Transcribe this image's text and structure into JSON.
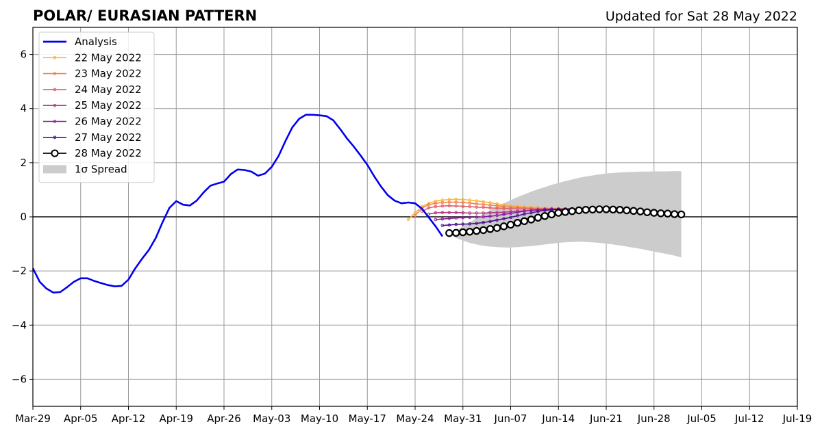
{
  "header": {
    "title": "POLAR/ EURASIAN  PATTERN",
    "updated": "Updated for Sat 28 May 2022"
  },
  "chart_data": {
    "type": "line",
    "title": "POLAR/ EURASIAN  PATTERN",
    "subtitle": "Updated for Sat 28 May 2022",
    "xlabel": "",
    "ylabel": "",
    "x_axis": {
      "type": "date",
      "start": "Mar-29",
      "end": "Jul-19",
      "ticks": [
        "Mar-29",
        "Apr-05",
        "Apr-12",
        "Apr-19",
        "Apr-26",
        "May-03",
        "May-10",
        "May-17",
        "May-24",
        "May-31",
        "Jun-07",
        "Jun-14",
        "Jun-21",
        "Jun-28",
        "Jul-05",
        "Jul-12",
        "Jul-19"
      ]
    },
    "ylim": [
      -7,
      7
    ],
    "yticks": [
      -6,
      -4,
      -2,
      0,
      2,
      4,
      6
    ],
    "ytick_labels": [
      "−6",
      "−4",
      "−2",
      "0",
      "2",
      "4",
      "6"
    ],
    "grid": true,
    "zero_line": true,
    "legend_position": "top-left",
    "analysis": {
      "name": "Analysis",
      "color": "#0000ee",
      "start_date": "Mar-29",
      "step_days": 1,
      "values": [
        -1.9,
        -2.4,
        -2.65,
        -2.8,
        -2.78,
        -2.6,
        -2.4,
        -2.27,
        -2.27,
        -2.37,
        -2.45,
        -2.52,
        -2.57,
        -2.55,
        -2.32,
        -1.9,
        -1.55,
        -1.22,
        -0.78,
        -0.2,
        0.33,
        0.58,
        0.45,
        0.42,
        0.6,
        0.9,
        1.15,
        1.23,
        1.3,
        1.58,
        1.75,
        1.73,
        1.67,
        1.52,
        1.6,
        1.85,
        2.25,
        2.8,
        3.3,
        3.62,
        3.77,
        3.77,
        3.75,
        3.72,
        3.57,
        3.25,
        2.9,
        2.6,
        2.27,
        1.92,
        1.5,
        1.12,
        0.8,
        0.6,
        0.5,
        0.53,
        0.5,
        0.3,
        -0.02,
        -0.35,
        -0.72
      ]
    },
    "forecasts": [
      {
        "name": "22 May 2022",
        "color": "#f9b63e",
        "start_date": "May-23",
        "values": [
          -0.1,
          0.15,
          0.38,
          0.5,
          0.58,
          0.62,
          0.64,
          0.65,
          0.64,
          0.62,
          0.59,
          0.56,
          0.52,
          0.48,
          0.44,
          0.41,
          0.39,
          0.37,
          0.35,
          0.34,
          0.33,
          0.32,
          0.31,
          0.3,
          0.29
        ]
      },
      {
        "name": "23 May 2022",
        "color": "#f2814f",
        "start_date": "May-24",
        "values": [
          0.05,
          0.32,
          0.45,
          0.5,
          0.53,
          0.54,
          0.54,
          0.53,
          0.51,
          0.48,
          0.46,
          0.43,
          0.41,
          0.38,
          0.36,
          0.35,
          0.33,
          0.32,
          0.31,
          0.3,
          0.3,
          0.29,
          0.29,
          0.28
        ]
      },
      {
        "name": "24 May 2022",
        "color": "#e35f6d",
        "start_date": "May-25",
        "values": [
          0.2,
          0.33,
          0.38,
          0.4,
          0.41,
          0.4,
          0.39,
          0.38,
          0.36,
          0.35,
          0.33,
          0.32,
          0.31,
          0.3,
          0.3,
          0.29,
          0.29,
          0.28,
          0.28,
          0.28,
          0.27,
          0.27,
          0.27
        ]
      },
      {
        "name": "25 May 2022",
        "color": "#b5377e",
        "start_date": "May-26",
        "values": [
          0.1,
          0.15,
          0.16,
          0.16,
          0.16,
          0.15,
          0.14,
          0.14,
          0.14,
          0.15,
          0.16,
          0.17,
          0.19,
          0.21,
          0.22,
          0.24,
          0.25,
          0.26,
          0.27,
          0.27,
          0.28,
          0.28
        ]
      },
      {
        "name": "26 May 2022",
        "color": "#8a1ea1",
        "start_date": "May-27",
        "values": [
          -0.1,
          -0.08,
          -0.06,
          -0.04,
          -0.03,
          -0.02,
          -0.01,
          0.0,
          0.02,
          0.05,
          0.09,
          0.13,
          0.17,
          0.21,
          0.24,
          0.26,
          0.28,
          0.29,
          0.29,
          0.29,
          0.29
        ]
      },
      {
        "name": "27 May 2022",
        "color": "#4b0e8f",
        "start_date": "May-28",
        "values": [
          -0.32,
          -0.3,
          -0.28,
          -0.27,
          -0.26,
          -0.24,
          -0.21,
          -0.17,
          -0.12,
          -0.07,
          -0.02,
          0.04,
          0.1,
          0.15,
          0.2,
          0.24,
          0.26,
          0.28,
          0.29,
          0.3
        ]
      }
    ],
    "current_forecast": {
      "name": "28 May 2022",
      "color": "#000000",
      "start_date": "May-29",
      "values": [
        -0.6,
        -0.59,
        -0.57,
        -0.55,
        -0.52,
        -0.49,
        -0.45,
        -0.41,
        -0.35,
        -0.29,
        -0.22,
        -0.16,
        -0.1,
        -0.03,
        0.03,
        0.09,
        0.15,
        0.18,
        0.21,
        0.24,
        0.26,
        0.27,
        0.28,
        0.28,
        0.27,
        0.26,
        0.24,
        0.22,
        0.2,
        0.17,
        0.15,
        0.13,
        0.12,
        0.1,
        0.09
      ]
    },
    "spread": {
      "name": "1σ Spread",
      "color": "#cccccc",
      "start_date": "May-29",
      "upper": [
        -0.55,
        -0.5,
        -0.35,
        -0.2,
        -0.05,
        0.1,
        0.25,
        0.38,
        0.5,
        0.62,
        0.73,
        0.83,
        0.93,
        1.02,
        1.1,
        1.18,
        1.25,
        1.32,
        1.38,
        1.44,
        1.49,
        1.53,
        1.57,
        1.6,
        1.62,
        1.64,
        1.65,
        1.66,
        1.67,
        1.67,
        1.68,
        1.68,
        1.68,
        1.69,
        1.69
      ],
      "lower": [
        -0.65,
        -0.78,
        -0.88,
        -0.96,
        -1.02,
        -1.07,
        -1.1,
        -1.12,
        -1.13,
        -1.13,
        -1.12,
        -1.1,
        -1.08,
        -1.05,
        -1.02,
        -0.99,
        -0.96,
        -0.94,
        -0.93,
        -0.92,
        -0.93,
        -0.94,
        -0.96,
        -0.99,
        -1.02,
        -1.06,
        -1.1,
        -1.14,
        -1.18,
        -1.23,
        -1.28,
        -1.33,
        -1.38,
        -1.43,
        -1.5
      ]
    },
    "legend": [
      {
        "label": "Analysis",
        "kind": "analysis"
      },
      {
        "label": "22 May 2022",
        "kind": "forecast",
        "color": "#f9b63e"
      },
      {
        "label": "23 May 2022",
        "kind": "forecast",
        "color": "#f2814f"
      },
      {
        "label": "24 May 2022",
        "kind": "forecast",
        "color": "#e35f6d"
      },
      {
        "label": "25 May 2022",
        "kind": "forecast",
        "color": "#b5377e"
      },
      {
        "label": "26 May 2022",
        "kind": "forecast",
        "color": "#8a1ea1"
      },
      {
        "label": "27 May 2022",
        "kind": "forecast",
        "color": "#4b0e8f"
      },
      {
        "label": "28 May 2022",
        "kind": "current"
      },
      {
        "label": "1σ Spread",
        "kind": "spread"
      }
    ]
  }
}
